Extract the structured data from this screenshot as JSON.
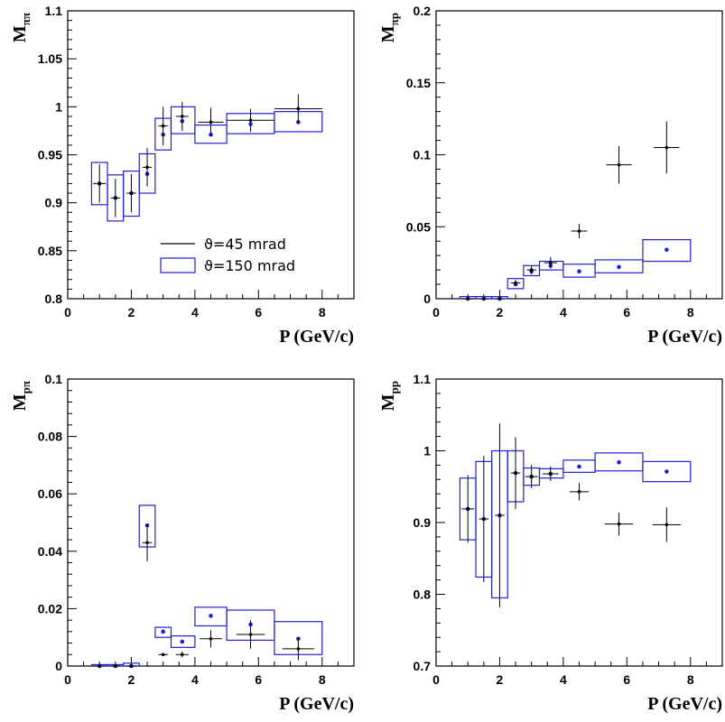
{
  "chart_data": [
    {
      "type": "scatter",
      "ylabel_main": "M",
      "ylabel_sub": "ππ",
      "xlabel": "P (GeV/c)",
      "xlim": [
        0,
        9
      ],
      "ylim": [
        0.8,
        1.1
      ],
      "xticks": [
        "0",
        "2",
        "4",
        "6",
        "8"
      ],
      "yticks": [
        "0.8",
        "0.85",
        "0.9",
        "0.95",
        "1",
        "1.05",
        "1.1"
      ],
      "ytick_values": [
        0.8,
        0.85,
        0.9,
        0.95,
        1.0,
        1.05,
        1.1
      ],
      "legend": {
        "placement": "center",
        "entries": [
          "ϑ=45  mrad",
          "ϑ=150 mrad"
        ]
      },
      "series": [
        {
          "name": "ϑ=45  mrad",
          "style": "points-with-errors",
          "points": [
            {
              "x": 1.0,
              "y": 0.92,
              "xerr": 0.2,
              "yerr": 0.02
            },
            {
              "x": 1.5,
              "y": 0.905,
              "xerr": 0.15,
              "yerr": 0.02
            },
            {
              "x": 2.0,
              "y": 0.91,
              "xerr": 0.15,
              "yerr": 0.02
            },
            {
              "x": 2.5,
              "y": 0.937,
              "xerr": 0.15,
              "yerr": 0.02
            },
            {
              "x": 3.0,
              "y": 0.98,
              "xerr": 0.15,
              "yerr": 0.02
            },
            {
              "x": 3.6,
              "y": 0.99,
              "xerr": 0.2,
              "yerr": 0.015
            },
            {
              "x": 4.5,
              "y": 0.984,
              "xerr": 0.4,
              "yerr": 0.015
            },
            {
              "x": 5.75,
              "y": 0.986,
              "xerr": 0.75,
              "yerr": 0.012
            },
            {
              "x": 7.25,
              "y": 0.998,
              "xerr": 0.75,
              "yerr": 0.015
            }
          ]
        },
        {
          "name": "ϑ=150 mrad",
          "style": "boxes",
          "points": [
            {
              "x": 1.0,
              "y": 0.92,
              "x0": 0.75,
              "x1": 1.25,
              "y0": 0.898,
              "y1": 0.942
            },
            {
              "x": 1.5,
              "y": 0.905,
              "x0": 1.25,
              "x1": 1.75,
              "y0": 0.881,
              "y1": 0.929
            },
            {
              "x": 2.0,
              "y": 0.91,
              "x0": 1.75,
              "x1": 2.25,
              "y0": 0.886,
              "y1": 0.933
            },
            {
              "x": 2.5,
              "y": 0.93,
              "x0": 2.25,
              "x1": 2.75,
              "y0": 0.91,
              "y1": 0.951
            },
            {
              "x": 3.0,
              "y": 0.971,
              "x0": 2.75,
              "x1": 3.25,
              "y0": 0.955,
              "y1": 0.988
            },
            {
              "x": 3.6,
              "y": 0.985,
              "x0": 3.25,
              "x1": 4.0,
              "y0": 0.972,
              "y1": 1.0
            },
            {
              "x": 4.5,
              "y": 0.971,
              "x0": 4.0,
              "x1": 5.0,
              "y0": 0.962,
              "y1": 0.981
            },
            {
              "x": 5.75,
              "y": 0.982,
              "x0": 5.0,
              "x1": 6.5,
              "y0": 0.972,
              "y1": 0.993
            },
            {
              "x": 7.25,
              "y": 0.984,
              "x0": 6.5,
              "x1": 8.0,
              "y0": 0.974,
              "y1": 0.995
            }
          ]
        }
      ]
    },
    {
      "type": "scatter",
      "ylabel_main": "M",
      "ylabel_sub": "πp",
      "xlabel": "P (GeV/c)",
      "xlim": [
        0,
        9
      ],
      "ylim": [
        0,
        0.2
      ],
      "xticks": [
        "0",
        "2",
        "4",
        "6",
        "8"
      ],
      "yticks": [
        "0",
        "0.05",
        "0.1",
        "0.15",
        "0.2"
      ],
      "ytick_values": [
        0,
        0.05,
        0.1,
        0.15,
        0.2
      ],
      "series": [
        {
          "name": "ϑ=45  mrad",
          "style": "points-with-errors",
          "points": [
            {
              "x": 1.0,
              "y": 0.0,
              "xerr": 0.2,
              "yerr": 0.0015
            },
            {
              "x": 1.5,
              "y": 0.0,
              "xerr": 0.15,
              "yerr": 0.0015
            },
            {
              "x": 2.0,
              "y": 0.0,
              "xerr": 0.15,
              "yerr": 0.0015
            },
            {
              "x": 2.5,
              "y": 0.011,
              "xerr": 0.15,
              "yerr": 0.002
            },
            {
              "x": 3.0,
              "y": 0.02,
              "xerr": 0.15,
              "yerr": 0.003
            },
            {
              "x": 3.6,
              "y": 0.025,
              "xerr": 0.2,
              "yerr": 0.004
            },
            {
              "x": 4.5,
              "y": 0.047,
              "xerr": 0.25,
              "yerr": 0.005
            },
            {
              "x": 5.75,
              "y": 0.093,
              "xerr": 0.4,
              "yerr": 0.013
            },
            {
              "x": 7.25,
              "y": 0.105,
              "xerr": 0.4,
              "yerr": 0.018
            }
          ]
        },
        {
          "name": "ϑ=150 mrad",
          "style": "boxes",
          "points": [
            {
              "x": 1.0,
              "y": 0.0,
              "x0": 0.75,
              "x1": 1.25,
              "y0": 0.0,
              "y1": 0.0015
            },
            {
              "x": 1.5,
              "y": 0.0,
              "x0": 1.25,
              "x1": 1.75,
              "y0": 0.0,
              "y1": 0.0015
            },
            {
              "x": 2.0,
              "y": 0.0,
              "x0": 1.75,
              "x1": 2.25,
              "y0": 0.0,
              "y1": 0.0015
            },
            {
              "x": 2.5,
              "y": 0.01,
              "x0": 2.25,
              "x1": 2.75,
              "y0": 0.007,
              "y1": 0.014
            },
            {
              "x": 3.0,
              "y": 0.019,
              "x0": 2.75,
              "x1": 3.25,
              "y0": 0.016,
              "y1": 0.023
            },
            {
              "x": 3.6,
              "y": 0.023,
              "x0": 3.25,
              "x1": 4.0,
              "y0": 0.02,
              "y1": 0.026
            },
            {
              "x": 4.5,
              "y": 0.019,
              "x0": 4.0,
              "x1": 5.0,
              "y0": 0.015,
              "y1": 0.024
            },
            {
              "x": 5.75,
              "y": 0.022,
              "x0": 5.0,
              "x1": 6.5,
              "y0": 0.018,
              "y1": 0.027
            },
            {
              "x": 7.25,
              "y": 0.034,
              "x0": 6.5,
              "x1": 8.0,
              "y0": 0.026,
              "y1": 0.041
            }
          ]
        }
      ]
    },
    {
      "type": "scatter",
      "ylabel_main": "M",
      "ylabel_sub": "pπ",
      "xlabel": "P (GeV/c)",
      "xlim": [
        0,
        9
      ],
      "ylim": [
        0,
        0.1
      ],
      "xticks": [
        "0",
        "2",
        "4",
        "6",
        "8"
      ],
      "yticks": [
        "0",
        "0.02",
        "0.04",
        "0.06",
        "0.08",
        "0.1"
      ],
      "ytick_values": [
        0,
        0.02,
        0.04,
        0.06,
        0.08,
        0.1
      ],
      "series": [
        {
          "name": "ϑ=45  mrad",
          "style": "points-with-errors",
          "points": [
            {
              "x": 1.0,
              "y": 0.0,
              "xerr": 0.2,
              "yerr": 0.0005
            },
            {
              "x": 1.5,
              "y": 0.0,
              "xerr": 0.15,
              "yerr": 0.0005
            },
            {
              "x": 2.0,
              "y": 0.0,
              "xerr": 0.15,
              "yerr": 0.0005
            },
            {
              "x": 2.5,
              "y": 0.043,
              "xerr": 0.15,
              "yerr": 0.0065
            },
            {
              "x": 3.0,
              "y": 0.004,
              "xerr": 0.15,
              "yerr": 0.0005
            },
            {
              "x": 3.6,
              "y": 0.004,
              "xerr": 0.2,
              "yerr": 0.001
            },
            {
              "x": 4.5,
              "y": 0.0095,
              "xerr": 0.35,
              "yerr": 0.003
            },
            {
              "x": 5.75,
              "y": 0.011,
              "xerr": 0.45,
              "yerr": 0.005
            },
            {
              "x": 7.25,
              "y": 0.006,
              "xerr": 0.5,
              "yerr": 0.004
            }
          ]
        },
        {
          "name": "ϑ=150 mrad",
          "style": "boxes",
          "points": [
            {
              "x": 1.0,
              "y": 0.0,
              "x0": 0.75,
              "x1": 1.25,
              "y0": 0.0,
              "y1": 0.0005
            },
            {
              "x": 1.5,
              "y": 0.0,
              "x0": 1.25,
              "x1": 1.75,
              "y0": 0.0,
              "y1": 0.0005
            },
            {
              "x": 2.0,
              "y": 0.0,
              "x0": 1.75,
              "x1": 2.25,
              "y0": 0.0,
              "y1": 0.001
            },
            {
              "x": 2.5,
              "y": 0.049,
              "x0": 2.25,
              "x1": 2.75,
              "y0": 0.0415,
              "y1": 0.056
            },
            {
              "x": 3.0,
              "y": 0.012,
              "x0": 2.75,
              "x1": 3.25,
              "y0": 0.01,
              "y1": 0.0135
            },
            {
              "x": 3.6,
              "y": 0.0085,
              "x0": 3.25,
              "x1": 4.0,
              "y0": 0.0065,
              "y1": 0.0105
            },
            {
              "x": 4.5,
              "y": 0.0175,
              "x0": 4.0,
              "x1": 5.0,
              "y0": 0.014,
              "y1": 0.0205
            },
            {
              "x": 5.75,
              "y": 0.0145,
              "x0": 5.0,
              "x1": 6.5,
              "y0": 0.009,
              "y1": 0.0195
            },
            {
              "x": 7.25,
              "y": 0.0095,
              "x0": 6.5,
              "x1": 8.0,
              "y0": 0.004,
              "y1": 0.0155
            }
          ]
        }
      ]
    },
    {
      "type": "scatter",
      "ylabel_main": "M",
      "ylabel_sub": "pp",
      "xlabel": "P (GeV/c)",
      "xlim": [
        0,
        9
      ],
      "ylim": [
        0.7,
        1.1
      ],
      "xticks": [
        "0",
        "2",
        "4",
        "6",
        "8"
      ],
      "yticks": [
        "0.7",
        "0.8",
        "0.9",
        "1",
        "1.1"
      ],
      "ytick_values": [
        0.7,
        0.8,
        0.9,
        1.0,
        1.1
      ],
      "series": [
        {
          "name": "ϑ=45  mrad",
          "style": "points-with-errors",
          "points": [
            {
              "x": 1.0,
              "y": 0.919,
              "xerr": 0.2,
              "yerr": 0.047
            },
            {
              "x": 1.5,
              "y": 0.905,
              "xerr": 0.15,
              "yerr": 0.088
            },
            {
              "x": 2.0,
              "y": 0.91,
              "xerr": 0.15,
              "yerr": 0.128
            },
            {
              "x": 2.5,
              "y": 0.969,
              "xerr": 0.15,
              "yerr": 0.05
            },
            {
              "x": 3.0,
              "y": 0.964,
              "xerr": 0.2,
              "yerr": 0.016
            },
            {
              "x": 3.6,
              "y": 0.968,
              "xerr": 0.25,
              "yerr": 0.01
            },
            {
              "x": 4.5,
              "y": 0.943,
              "xerr": 0.3,
              "yerr": 0.012
            },
            {
              "x": 5.75,
              "y": 0.898,
              "xerr": 0.45,
              "yerr": 0.016
            },
            {
              "x": 7.25,
              "y": 0.897,
              "xerr": 0.45,
              "yerr": 0.024
            }
          ]
        },
        {
          "name": "ϑ=150 mrad",
          "style": "boxes",
          "points": [
            {
              "x": 1.0,
              "y": 0.919,
              "x0": 0.75,
              "x1": 1.25,
              "y0": 0.876,
              "y1": 0.962
            },
            {
              "x": 1.5,
              "y": 0.905,
              "x0": 1.25,
              "x1": 1.75,
              "y0": 0.824,
              "y1": 0.985
            },
            {
              "x": 2.0,
              "y": 0.91,
              "x0": 1.75,
              "x1": 2.25,
              "y0": 0.795,
              "y1": 1.0
            },
            {
              "x": 2.5,
              "y": 0.969,
              "x0": 2.25,
              "x1": 2.75,
              "y0": 0.929,
              "y1": 1.0
            },
            {
              "x": 3.0,
              "y": 0.964,
              "x0": 2.75,
              "x1": 3.25,
              "y0": 0.952,
              "y1": 0.976
            },
            {
              "x": 3.6,
              "y": 0.968,
              "x0": 3.25,
              "x1": 4.0,
              "y0": 0.962,
              "y1": 0.975
            },
            {
              "x": 4.5,
              "y": 0.978,
              "x0": 4.0,
              "x1": 5.0,
              "y0": 0.97,
              "y1": 0.987
            },
            {
              "x": 5.75,
              "y": 0.984,
              "x0": 5.0,
              "x1": 6.5,
              "y0": 0.972,
              "y1": 0.997
            },
            {
              "x": 7.25,
              "y": 0.971,
              "x0": 6.5,
              "x1": 8.0,
              "y0": 0.957,
              "y1": 0.985
            }
          ]
        }
      ]
    }
  ],
  "colors": {
    "axis": "#000000",
    "series_45": "#000000",
    "series_150": "#1f1fd6",
    "background": "#ffffff"
  }
}
